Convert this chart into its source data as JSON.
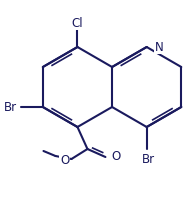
{
  "bg_color": "#ffffff",
  "bond_color": "#1a1a5e",
  "lw": 1.5,
  "lw_double": 1.2,
  "fs_label": 8.5,
  "figw": 1.91,
  "figh": 1.97,
  "dpi": 100,
  "C8a": [
    112,
    130
  ],
  "C4a": [
    112,
    90
  ],
  "s": 40
}
